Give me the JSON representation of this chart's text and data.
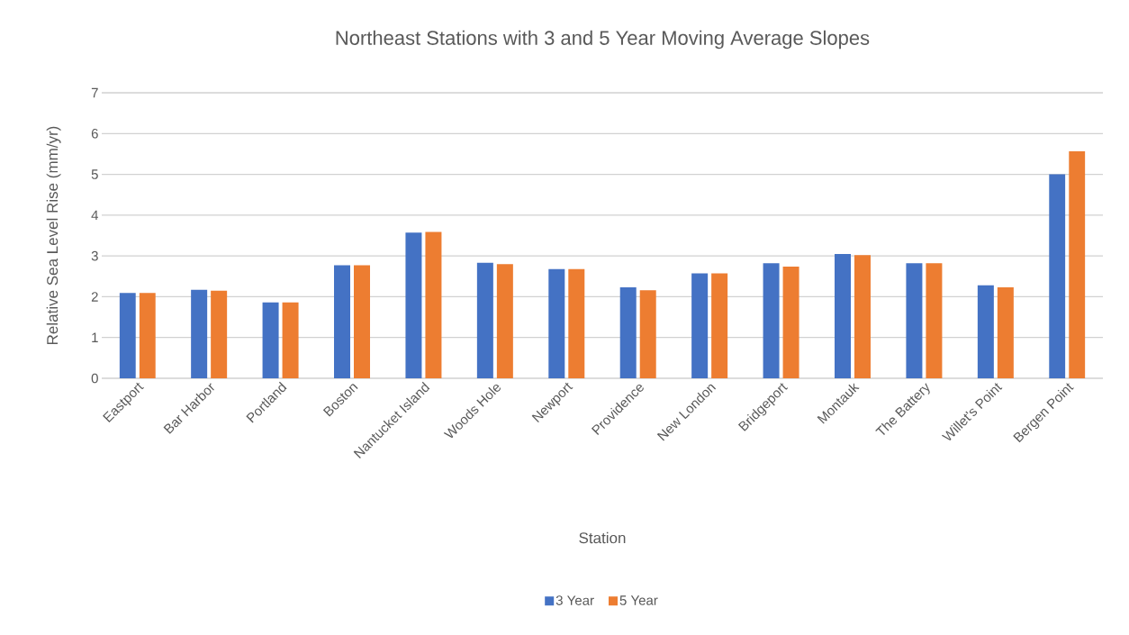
{
  "chart_data": {
    "type": "bar",
    "title": "Northeast Stations with 3 and 5 Year Moving Average Slopes",
    "xlabel": "Station",
    "ylabel": "Relative Sea Level Rise (mm/yr)",
    "categories": [
      "Eastport",
      "Bar Harbor",
      "Portland",
      "Boston",
      "Nantucket Island",
      "Woods Hole",
      "Newport",
      "Providence",
      "New London",
      "Bridgeport",
      "Montauk",
      "The Battery",
      "Willet's Point",
      "Bergen Point"
    ],
    "series": [
      {
        "name": "3 Year",
        "color": "#4472c4",
        "values": [
          2.09,
          2.17,
          1.86,
          2.77,
          3.57,
          2.83,
          2.68,
          2.23,
          2.57,
          2.82,
          3.05,
          2.82,
          2.28,
          5.0
        ]
      },
      {
        "name": "5 Year",
        "color": "#ed7d31",
        "values": [
          2.09,
          2.15,
          1.86,
          2.77,
          3.59,
          2.8,
          2.68,
          2.16,
          2.57,
          2.74,
          3.02,
          2.82,
          2.23,
          5.57
        ]
      }
    ],
    "ylim": [
      0,
      7
    ],
    "yticks": [
      0,
      1,
      2,
      3,
      4,
      5,
      6,
      7
    ],
    "grid": "y",
    "legend": "bottom"
  }
}
